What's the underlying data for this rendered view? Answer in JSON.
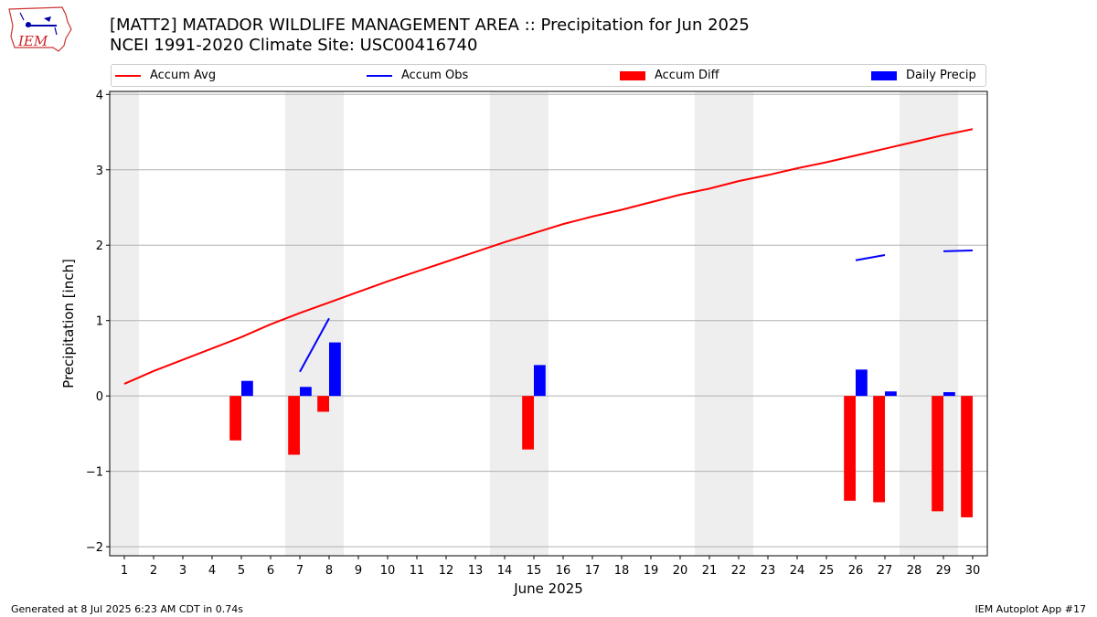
{
  "header": {
    "title_line1": "[MATT2] MATADOR WILDLIFE MANAGEMENT AREA :: Precipitation for Jun 2025",
    "title_line2": "NCEI 1991-2020 Climate Site: USC00416740",
    "logo_text": "IEM"
  },
  "footer": {
    "left": "Generated at 8 Jul 2025 6:23 AM CDT in 0.74s",
    "right": "IEM Autoplot App #17"
  },
  "colors": {
    "accum_avg": "#ff0000",
    "accum_obs": "#0000ff",
    "accum_diff": "#ff0000",
    "daily_precip": "#0000ff",
    "weekend_shade": "#eeeeee",
    "grid": "#b0b0b0"
  },
  "chart_data": {
    "type": "bar",
    "xlabel": "June 2025",
    "ylabel": "Precipitation [inch]",
    "xlim": [
      0.5,
      30.5
    ],
    "ylim": [
      -2.12,
      4.04
    ],
    "x_ticks": [
      1,
      2,
      3,
      4,
      5,
      6,
      7,
      8,
      9,
      10,
      11,
      12,
      13,
      14,
      15,
      16,
      17,
      18,
      19,
      20,
      21,
      22,
      23,
      24,
      25,
      26,
      27,
      28,
      29,
      30
    ],
    "x_tick_labels": [
      "1",
      "2",
      "3",
      "4",
      "5",
      "6",
      "7",
      "8",
      "9",
      "10",
      "11",
      "12",
      "13",
      "14",
      "15",
      "16",
      "17",
      "18",
      "19",
      "20",
      "21",
      "22",
      "23",
      "24",
      "25",
      "26",
      "27",
      "28",
      "29",
      "30"
    ],
    "y_ticks": [
      -2,
      -1,
      0,
      1,
      2,
      3,
      4
    ],
    "y_tick_labels": [
      "−2",
      "−1",
      "0",
      "1",
      "2",
      "3",
      "4"
    ],
    "grid": "horizontal",
    "legend_position": "top",
    "weekend_shading": [
      [
        0.5,
        1.5
      ],
      [
        6.5,
        8.5
      ],
      [
        13.5,
        15.5
      ],
      [
        20.5,
        22.5
      ],
      [
        27.5,
        29.5
      ]
    ],
    "legend": [
      {
        "label": "Accum Avg",
        "kind": "line",
        "color": "#ff0000"
      },
      {
        "label": "Accum Obs",
        "kind": "line",
        "color": "#0000ff"
      },
      {
        "label": "Accum Diff",
        "kind": "bar",
        "color": "#ff0000"
      },
      {
        "label": "Daily Precip",
        "kind": "bar",
        "color": "#0000ff"
      }
    ],
    "accum_avg": {
      "x": [
        1,
        2,
        3,
        4,
        5,
        6,
        7,
        8,
        9,
        10,
        11,
        12,
        13,
        14,
        15,
        16,
        17,
        18,
        19,
        20,
        21,
        22,
        23,
        24,
        25,
        26,
        27,
        28,
        29,
        30
      ],
      "y": [
        0.16,
        0.33,
        0.48,
        0.63,
        0.78,
        0.95,
        1.1,
        1.24,
        1.38,
        1.52,
        1.65,
        1.78,
        1.91,
        2.04,
        2.16,
        2.28,
        2.38,
        2.47,
        2.57,
        2.67,
        2.75,
        2.85,
        2.93,
        3.02,
        3.1,
        3.19,
        3.28,
        3.37,
        3.46,
        3.54
      ]
    },
    "accum_obs": [
      {
        "x": [
          7,
          8
        ],
        "y": [
          0.32,
          1.03
        ]
      },
      {
        "x": [
          26,
          27
        ],
        "y": [
          1.8,
          1.87
        ]
      },
      {
        "x": [
          29,
          30
        ],
        "y": [
          1.92,
          1.93
        ]
      }
    ],
    "accum_diff": {
      "x": [
        5,
        7,
        8,
        15,
        26,
        27,
        29,
        30
      ],
      "y": [
        -0.59,
        -0.78,
        -0.21,
        -0.71,
        -1.39,
        -1.41,
        -1.53,
        -1.61
      ]
    },
    "daily_precip": {
      "x": [
        5,
        7,
        8,
        15,
        26,
        27,
        29,
        30
      ],
      "y": [
        0.2,
        0.12,
        0.71,
        0.41,
        0.35,
        0.06,
        0.05,
        0.0
      ]
    }
  }
}
